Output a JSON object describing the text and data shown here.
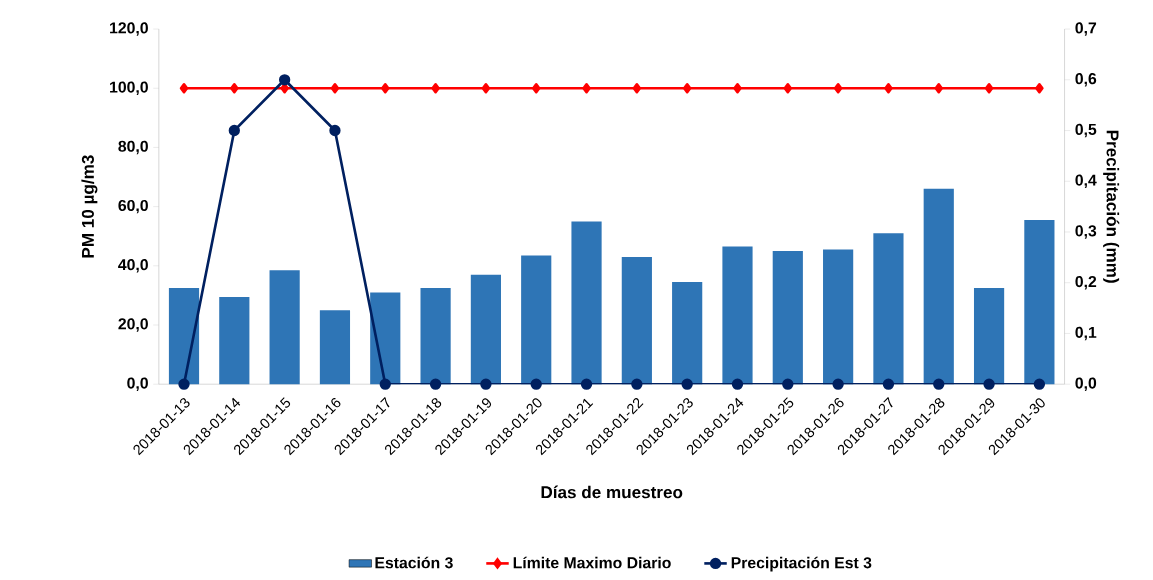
{
  "chart_data": {
    "type": "bar",
    "xlabel": "Días de muestreo",
    "ylabel": "PM  10 µg/m3",
    "y2label": "Precipitación (mm)",
    "categories": [
      "2018-01-13",
      "2018-01-14",
      "2018-01-15",
      "2018-01-16",
      "2018-01-17",
      "2018-01-18",
      "2018-01-19",
      "2018-01-20",
      "2018-01-21",
      "2018-01-22",
      "2018-01-23",
      "2018-01-24",
      "2018-01-25",
      "2018-01-26",
      "2018-01-27",
      "2018-01-28",
      "2018-01-29",
      "2018-01-30"
    ],
    "series": [
      {
        "name": "Estación 3",
        "color": "#2e75b6",
        "values": [
          32.5,
          29.5,
          38.5,
          25,
          31,
          32.5,
          37,
          43.5,
          55,
          43,
          34.5,
          46.5,
          45,
          45.5,
          51,
          66,
          32.5,
          55.5
        ]
      },
      {
        "name": "Límite Maximo Diario",
        "type": "line",
        "color": "#ff0000",
        "marker": "diamond",
        "values": [
          100,
          100,
          100,
          100,
          100,
          100,
          100,
          100,
          100,
          100,
          100,
          100,
          100,
          100,
          100,
          100,
          100,
          100
        ]
      },
      {
        "name": "Precipitación Est 3",
        "type": "line",
        "axis": "y2",
        "color": "#002060",
        "marker": "circle",
        "values": [
          0,
          0.5,
          0.6,
          0.5,
          0,
          0,
          0,
          0,
          0,
          0,
          0,
          0,
          0,
          0,
          0,
          0,
          0,
          0
        ]
      }
    ],
    "ylim": [
      0,
      120
    ],
    "yticks": [
      {
        "value": 0,
        "label": "0,0"
      },
      {
        "value": 20,
        "label": "20,0"
      },
      {
        "value": 40,
        "label": "40,0"
      },
      {
        "value": 60,
        "label": "60,0"
      },
      {
        "value": 80,
        "label": "80,0"
      },
      {
        "value": 100,
        "label": "100,0"
      },
      {
        "value": 120,
        "label": "120,0"
      }
    ],
    "y2lim": [
      0,
      0.7
    ],
    "y2ticks": [
      {
        "value": 0,
        "label": "0,0"
      },
      {
        "value": 0.1,
        "label": "0,1"
      },
      {
        "value": 0.2,
        "label": "0,2"
      },
      {
        "value": 0.3,
        "label": "0,3"
      },
      {
        "value": 0.4,
        "label": "0,4"
      },
      {
        "value": 0.5,
        "label": "0,5"
      },
      {
        "value": 0.6,
        "label": "0,6"
      },
      {
        "value": 0.7,
        "label": "0,7"
      }
    ],
    "legend": "bottom",
    "grid": false
  }
}
